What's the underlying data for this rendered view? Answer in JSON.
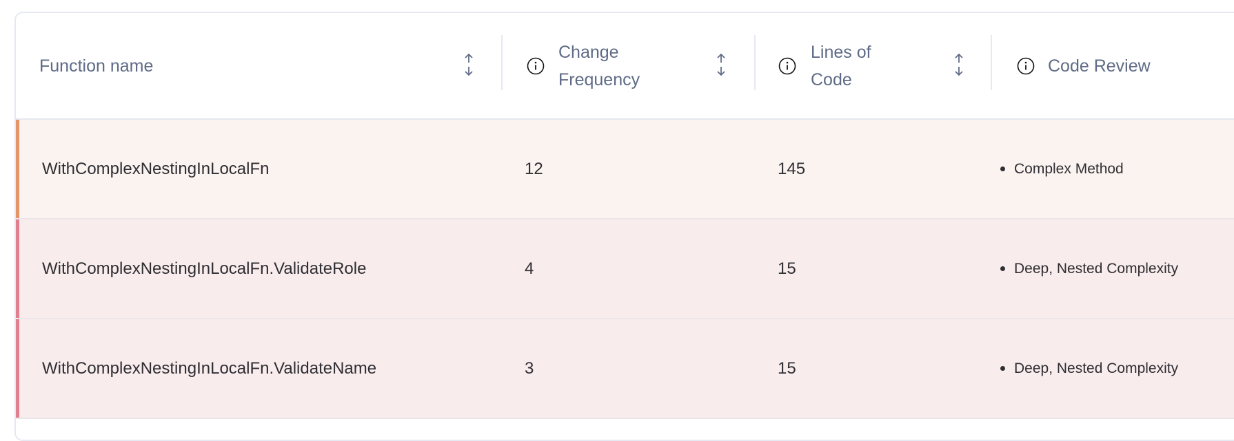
{
  "table": {
    "columns": [
      {
        "label": "Function name",
        "info_icon": false,
        "sortable": true,
        "sort_icon": "sort-arrows-icon"
      },
      {
        "label": "Change Frequency",
        "info_icon": true,
        "sortable": true,
        "sort_icon": "sort-arrows-icon"
      },
      {
        "label": "Lines of Code",
        "info_icon": true,
        "sortable": true,
        "sort_icon": "sort-arrows-icon"
      },
      {
        "label": "Code Review",
        "info_icon": true,
        "sortable": false
      }
    ],
    "rows": [
      {
        "function": "WithComplexNestingInLocalFn",
        "change_frequency": "12",
        "lines_of_code": "145",
        "code_review": "Complex Method",
        "accent": "#e4956a",
        "background": "#fbf3f0"
      },
      {
        "function": "WithComplexNestingInLocalFn.ValidateRole",
        "change_frequency": "4",
        "lines_of_code": "15",
        "code_review": "Deep, Nested Complexity",
        "accent": "#e0808e",
        "background": "#f9eced"
      },
      {
        "function": "WithComplexNestingInLocalFn.ValidateName",
        "change_frequency": "3",
        "lines_of_code": "15",
        "code_review": "Deep, Nested Complexity",
        "accent": "#e0808e",
        "background": "#f9eced"
      }
    ]
  },
  "colors": {
    "header_text": "#5f6b86",
    "body_text": "#2e2e33",
    "border": "#e6e9f1"
  }
}
